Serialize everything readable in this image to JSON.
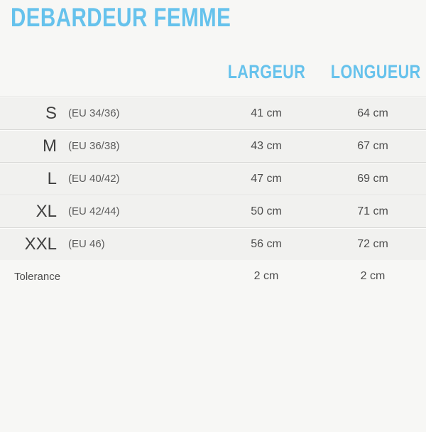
{
  "colors": {
    "accent": "#66c2ec",
    "page_background": "#f7f7f5",
    "row_background": "#f1f1ef",
    "separator_line": "#d8d8d6",
    "text_dark": "#404040"
  },
  "chart_data": {
    "type": "table",
    "title": "DEBARDEUR FEMME",
    "column_headers": [
      "LARGEUR",
      "LONGUEUR"
    ],
    "rows": [
      {
        "size": "S",
        "eu_label": "(EU 34/36)",
        "largeur": "41 cm",
        "longueur": "64 cm",
        "largeur_cm": 41,
        "longueur_cm": 64
      },
      {
        "size": "M",
        "eu_label": "(EU 36/38)",
        "largeur": "43 cm",
        "longueur": "67 cm",
        "largeur_cm": 43,
        "longueur_cm": 67
      },
      {
        "size": "L",
        "eu_label": "(EU 40/42)",
        "largeur": "47 cm",
        "longueur": "69 cm",
        "largeur_cm": 47,
        "longueur_cm": 69
      },
      {
        "size": "XL",
        "eu_label": "(EU 42/44)",
        "largeur": "50 cm",
        "longueur": "71 cm",
        "largeur_cm": 50,
        "longueur_cm": 71
      },
      {
        "size": "XXL",
        "eu_label": "(EU 46)",
        "largeur": "56 cm",
        "longueur": "72 cm",
        "largeur_cm": 56,
        "longueur_cm": 72
      }
    ],
    "tolerance_row": {
      "label": "Tolerance",
      "largeur": "2 cm",
      "longueur": "2 cm",
      "largeur_cm": 2,
      "longueur_cm": 2
    }
  }
}
